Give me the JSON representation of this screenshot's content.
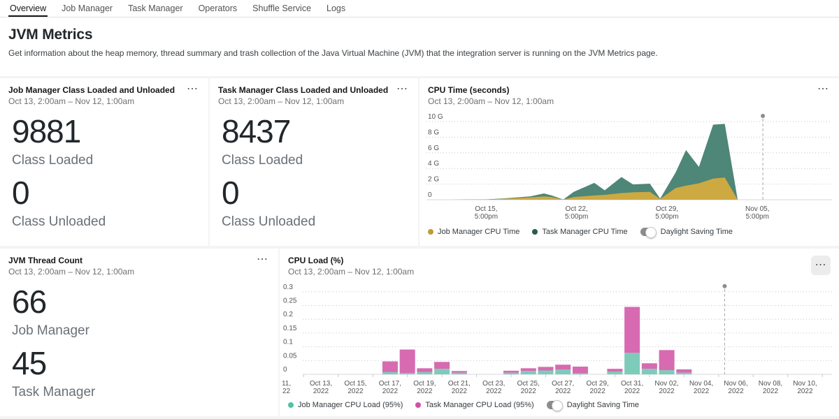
{
  "tabs": [
    {
      "label": "Overview",
      "active": true
    },
    {
      "label": "Job Manager",
      "active": false
    },
    {
      "label": "Task Manager",
      "active": false
    },
    {
      "label": "Operators",
      "active": false
    },
    {
      "label": "Shuffle Service",
      "active": false
    },
    {
      "label": "Logs",
      "active": false
    }
  ],
  "page": {
    "title": "JVM Metrics",
    "description": "Get information about the heap memory, thread summary and trash collection of the Java Virtual Machine (JVM) that the integration server is running on the JVM Metrics page."
  },
  "icons": {
    "overflow": "⋯"
  },
  "stat_cards": [
    {
      "title": "Job Manager Class Loaded and Unloaded",
      "subtitle": "Oct 13, 2:00am – Nov 12, 1:00am",
      "metrics": [
        {
          "value": "9881",
          "label": "Class Loaded"
        },
        {
          "value": "0",
          "label": "Class Unloaded"
        }
      ]
    },
    {
      "title": "Task Manager Class Loaded and Unloaded",
      "subtitle": "Oct 13, 2:00am – Nov 12, 1:00am",
      "metrics": [
        {
          "value": "8437",
          "label": "Class Loaded"
        },
        {
          "value": "0",
          "label": "Class Unloaded"
        }
      ]
    },
    {
      "title": "JVM Thread Count",
      "subtitle": "Oct 13, 2:00am – Nov 12, 1:00am",
      "metrics": [
        {
          "value": "66",
          "label": "Job Manager"
        },
        {
          "value": "45",
          "label": "Task Manager"
        }
      ]
    }
  ],
  "chart_data": [
    {
      "id": "cpu_time",
      "type": "area",
      "stacked": true,
      "title": "CPU Time (seconds)",
      "subtitle": "Oct 13, 2:00am – Nov 12, 1:00am",
      "unit": "G (seconds)",
      "ylim": [
        0,
        10
      ],
      "y_ticks": [
        {
          "v": 10,
          "label": "10 G"
        },
        {
          "v": 8,
          "label": "8 G"
        },
        {
          "v": 6,
          "label": "6 G"
        },
        {
          "v": 4,
          "label": "4 G"
        },
        {
          "v": 2,
          "label": "2 G"
        },
        {
          "v": 0,
          "label": "0"
        }
      ],
      "x_unit": "days since Oct 13, 2:00am",
      "x_ticks": [
        {
          "day": 2.625,
          "lines": [
            "Oct 15,",
            "5:00pm"
          ]
        },
        {
          "day": 9.625,
          "lines": [
            "Oct 22,",
            "5:00pm"
          ]
        },
        {
          "day": 16.625,
          "lines": [
            "Oct 29,",
            "5:00pm"
          ]
        },
        {
          "day": 23.625,
          "lines": [
            "Nov 05,",
            "5:00pm"
          ]
        }
      ],
      "series": [
        {
          "name": "Job Manager CPU Time",
          "color": "#cda942",
          "legend_color": "#bf9b32"
        },
        {
          "name": "Task Manager CPU Time",
          "color": "#4e8677",
          "legend_color": "#265c50"
        }
      ],
      "points": [
        {
          "d": 0,
          "jm": 0,
          "tm": 0
        },
        {
          "d": 2.6,
          "jm": 0.03,
          "tm": 0.02
        },
        {
          "d": 4.0,
          "jm": 0.12,
          "tm": 0.05
        },
        {
          "d": 6.0,
          "jm": 0.3,
          "tm": 0.12
        },
        {
          "d": 7.1,
          "jm": 0.42,
          "tm": 0.38
        },
        {
          "d": 7.7,
          "jm": 0.35,
          "tm": 0.2
        },
        {
          "d": 8.6,
          "jm": 0.02,
          "tm": 0
        },
        {
          "d": 9.4,
          "jm": 0.35,
          "tm": 0.65
        },
        {
          "d": 11.0,
          "jm": 0.55,
          "tm": 1.6
        },
        {
          "d": 11.8,
          "jm": 0.62,
          "tm": 0.58
        },
        {
          "d": 13.1,
          "jm": 0.85,
          "tm": 2.05
        },
        {
          "d": 14.0,
          "jm": 0.95,
          "tm": 1.0
        },
        {
          "d": 15.3,
          "jm": 1.0,
          "tm": 1.05
        },
        {
          "d": 16.1,
          "jm": 0.1,
          "tm": 0.05
        },
        {
          "d": 17.3,
          "jm": 1.5,
          "tm": 2.0
        },
        {
          "d": 18.1,
          "jm": 1.8,
          "tm": 4.55
        },
        {
          "d": 19.1,
          "jm": 2.1,
          "tm": 2.1
        },
        {
          "d": 20.2,
          "jm": 2.7,
          "tm": 6.9
        },
        {
          "d": 21.1,
          "jm": 2.85,
          "tm": 6.85
        },
        {
          "d": 22.1,
          "jm": 0,
          "tm": 0
        },
        {
          "d": 29.4,
          "jm": 0,
          "tm": 0
        }
      ],
      "dst_day": 24.05,
      "toggle_label": "Daylight Saving Time"
    },
    {
      "id": "cpu_load",
      "type": "bar",
      "stacked": true,
      "title": "CPU Load (%)",
      "subtitle": "Oct 13, 2:00am – Nov 12, 1:00am",
      "ylim": [
        0,
        0.3
      ],
      "y_ticks": [
        {
          "v": 0.3,
          "label": "0.3"
        },
        {
          "v": 0.25,
          "label": "0.25"
        },
        {
          "v": 0.2,
          "label": "0.2"
        },
        {
          "v": 0.15,
          "label": "0.15"
        },
        {
          "v": 0.1,
          "label": "0.1"
        },
        {
          "v": 0.05,
          "label": "0.05"
        },
        {
          "v": 0,
          "label": "0"
        }
      ],
      "x_unit": "days since Oct 13, 2:00am",
      "x_ticks": [
        {
          "day": -2,
          "lines": [
            "11,",
            "22"
          ]
        },
        {
          "day": 0,
          "lines": [
            "Oct 13,",
            "2022"
          ]
        },
        {
          "day": 2,
          "lines": [
            "Oct 15,",
            "2022"
          ]
        },
        {
          "day": 4,
          "lines": [
            "Oct 17,",
            "2022"
          ]
        },
        {
          "day": 6,
          "lines": [
            "Oct 19,",
            "2022"
          ]
        },
        {
          "day": 8,
          "lines": [
            "Oct 21,",
            "2022"
          ]
        },
        {
          "day": 10,
          "lines": [
            "Oct 23,",
            "2022"
          ]
        },
        {
          "day": 12,
          "lines": [
            "Oct 25,",
            "2022"
          ]
        },
        {
          "day": 14,
          "lines": [
            "Oct 27,",
            "2022"
          ]
        },
        {
          "day": 16,
          "lines": [
            "Oct 29,",
            "2022"
          ]
        },
        {
          "day": 18,
          "lines": [
            "Oct 31,",
            "2022"
          ]
        },
        {
          "day": 20,
          "lines": [
            "Nov 02,",
            "2022"
          ]
        },
        {
          "day": 22,
          "lines": [
            "Nov 04,",
            "2022"
          ]
        },
        {
          "day": 24,
          "lines": [
            "Nov 06,",
            "2022"
          ]
        },
        {
          "day": 26,
          "lines": [
            "Nov 08,",
            "2022"
          ]
        },
        {
          "day": 28,
          "lines": [
            "Nov 10,",
            "2022"
          ]
        }
      ],
      "categories": [
        "Oct 17, 2022",
        "Oct 18, 2022",
        "Oct 19, 2022",
        "Oct 20, 2022",
        "Oct 21, 2022",
        "Oct 24, 2022",
        "Oct 25, 2022",
        "Oct 26, 2022",
        "Oct 27, 2022",
        "Oct 28, 2022",
        "Oct 30, 2022",
        "Oct 31, 2022",
        "Nov 01, 2022",
        "Nov 02, 2022",
        "Nov 03, 2022"
      ],
      "days": [
        4,
        5,
        6,
        7,
        8,
        11,
        12,
        13,
        14,
        15,
        17,
        18,
        19,
        20,
        21
      ],
      "series": [
        {
          "name": "Job Manager CPU Load (95%)",
          "color": "#7dccb9",
          "legend_color": "#4ec3a5",
          "values": [
            0.008,
            0.005,
            0.008,
            0.02,
            0.006,
            0.006,
            0.012,
            0.014,
            0.017,
            0.004,
            0.01,
            0.078,
            0.02,
            0.015,
            0.006
          ]
        },
        {
          "name": "Task Manager CPU Load (95%)",
          "color": "#d76ab1",
          "legend_color": "#d44fa6",
          "values": [
            0.039,
            0.085,
            0.014,
            0.025,
            0.006,
            0.007,
            0.01,
            0.013,
            0.018,
            0.024,
            0.01,
            0.167,
            0.02,
            0.073,
            0.012
          ]
        }
      ],
      "dst_day": 23.35,
      "toggle_label": "Daylight Saving Time"
    }
  ]
}
